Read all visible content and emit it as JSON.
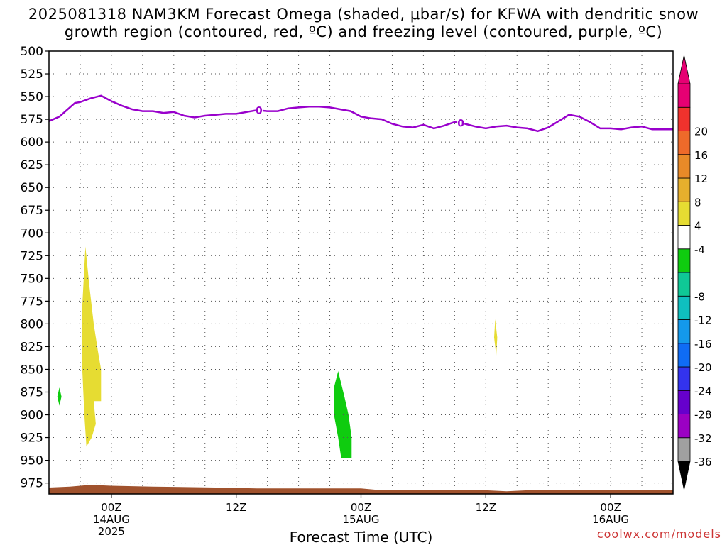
{
  "chart_data": {
    "type": "heatmap",
    "title_line1": "2025081318 NAM3KM Forecast Omega (shaded, μbar/s) for KFWA with dendritic snow",
    "title_line2": "growth region (contoured, red, ºC) and freezing level (contoured, purple, ºC)",
    "xlabel": "Forecast Time (UTC)",
    "credit": "coolwx.com/models",
    "x_range_hours": [
      0,
      60
    ],
    "y_range_mb": [
      500,
      987
    ],
    "y_ticks": [
      "500",
      "525",
      "550",
      "575",
      "600",
      "625",
      "650",
      "675",
      "700",
      "725",
      "750",
      "775",
      "800",
      "825",
      "850",
      "875",
      "900",
      "925",
      "950",
      "975"
    ],
    "x_ticks": [
      {
        "hour": 6,
        "line1": "00Z",
        "line2": "14AUG",
        "line3": "2025"
      },
      {
        "hour": 18,
        "line1": "12Z",
        "line2": "",
        "line3": ""
      },
      {
        "hour": 30,
        "line1": "00Z",
        "line2": "15AUG",
        "line3": ""
      },
      {
        "hour": 42,
        "line1": "12Z",
        "line2": "",
        "line3": ""
      },
      {
        "hour": 54,
        "line1": "00Z",
        "line2": "16AUG",
        "line3": ""
      }
    ],
    "colorbar": {
      "colors": [
        "#a0a0a0",
        "#9b00c3",
        "#6600cc",
        "#3333ee",
        "#0f6cf5",
        "#1499eb",
        "#0fbfbf",
        "#0fc896",
        "#0fcc0f",
        "#ffffff",
        "#e6dc32",
        "#e6af2d",
        "#e88a28",
        "#ee6a2a",
        "#f0322d",
        "#e60073"
      ],
      "labels": [
        "-36",
        "-32",
        "-28",
        "-24",
        "-20",
        "-16",
        "-12",
        "-8",
        "-4",
        "4",
        "8",
        "12",
        "16",
        "20"
      ],
      "below_color": "#000000",
      "above_color": "#e60073"
    },
    "freezing_level": {
      "label": "0",
      "color": "#9900cc",
      "points": [
        [
          0,
          577
        ],
        [
          1,
          572
        ],
        [
          2,
          562
        ],
        [
          2.5,
          557
        ],
        [
          3,
          556
        ],
        [
          4,
          552
        ],
        [
          5,
          549
        ],
        [
          6,
          555
        ],
        [
          7,
          560
        ],
        [
          8,
          564
        ],
        [
          9,
          566
        ],
        [
          10,
          566
        ],
        [
          11,
          568
        ],
        [
          12,
          567
        ],
        [
          13,
          571
        ],
        [
          14,
          573
        ],
        [
          15,
          571
        ],
        [
          16,
          570
        ],
        [
          17,
          569
        ],
        [
          18,
          569
        ],
        [
          19,
          567
        ],
        [
          20,
          565
        ],
        [
          21,
          566
        ],
        [
          22,
          566
        ],
        [
          23,
          563
        ],
        [
          24,
          562
        ],
        [
          25,
          561
        ],
        [
          26,
          561
        ],
        [
          27,
          562
        ],
        [
          28,
          564
        ],
        [
          29,
          566
        ],
        [
          30,
          572
        ],
        [
          31,
          574
        ],
        [
          32,
          575
        ],
        [
          33,
          580
        ],
        [
          34,
          583
        ],
        [
          35,
          584
        ],
        [
          36,
          581
        ],
        [
          37,
          585
        ],
        [
          38,
          582
        ],
        [
          39,
          578
        ],
        [
          40,
          580
        ],
        [
          41,
          583
        ],
        [
          42,
          585
        ],
        [
          43,
          583
        ],
        [
          44,
          582
        ],
        [
          45,
          584
        ],
        [
          46,
          585
        ],
        [
          47,
          588
        ],
        [
          48,
          584
        ],
        [
          49,
          577
        ],
        [
          50,
          570
        ],
        [
          51,
          572
        ],
        [
          52,
          578
        ],
        [
          53,
          585
        ],
        [
          54,
          585
        ],
        [
          55,
          586
        ],
        [
          56,
          584
        ],
        [
          57,
          583
        ],
        [
          58,
          586
        ],
        [
          59,
          586
        ],
        [
          60,
          586
        ]
      ],
      "label_hours": [
        20.2,
        39.6
      ]
    },
    "omega_regions": [
      {
        "value_range": "4 to 8",
        "color": "#e6dc32",
        "points": [
          [
            3.5,
            715
          ],
          [
            3.9,
            760
          ],
          [
            4.3,
            800
          ],
          [
            4.7,
            830
          ],
          [
            5.0,
            850
          ],
          [
            5.0,
            885
          ],
          [
            4.3,
            885
          ],
          [
            4.5,
            910
          ],
          [
            4.1,
            925
          ],
          [
            3.6,
            935
          ],
          [
            3.4,
            900
          ],
          [
            3.2,
            850
          ],
          [
            3.2,
            780
          ]
        ]
      },
      {
        "value_range": "-8 to -4",
        "color": "#0fcc0f",
        "points": [
          [
            27.8,
            852
          ],
          [
            28.4,
            880
          ],
          [
            28.8,
            900
          ],
          [
            29.1,
            925
          ],
          [
            29.1,
            948
          ],
          [
            28.1,
            948
          ],
          [
            27.8,
            925
          ],
          [
            27.4,
            900
          ],
          [
            27.4,
            870
          ]
        ]
      },
      {
        "value_range": "-8 to -4",
        "color": "#0fcc0f",
        "points": [
          [
            1.0,
            870
          ],
          [
            1.2,
            880
          ],
          [
            1.0,
            890
          ],
          [
            0.8,
            880
          ]
        ]
      },
      {
        "value_range": "4 to 8",
        "color": "#e6dc32",
        "points": [
          [
            42.9,
            795
          ],
          [
            43.1,
            815
          ],
          [
            43.0,
            835
          ],
          [
            42.8,
            815
          ]
        ]
      }
    ],
    "ground": {
      "color": "#a0522d",
      "points": [
        [
          0,
          980
        ],
        [
          2,
          979
        ],
        [
          4,
          977
        ],
        [
          6,
          978
        ],
        [
          10,
          979
        ],
        [
          16,
          980
        ],
        [
          20,
          981
        ],
        [
          30,
          981
        ],
        [
          32,
          983
        ],
        [
          42,
          983
        ],
        [
          44,
          984
        ],
        [
          46,
          983
        ],
        [
          60,
          983
        ]
      ]
    }
  }
}
